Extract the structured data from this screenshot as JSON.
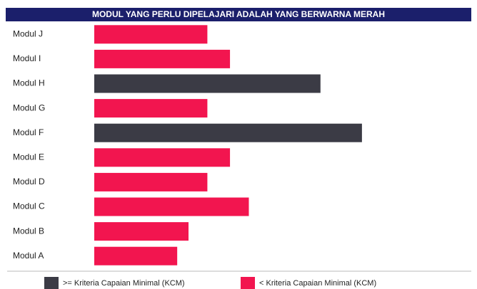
{
  "chart_data": {
    "type": "hbar",
    "title": "MODUL YANG PERLU DIPELAJARI ADALAH YANG BERWARNA MERAH",
    "categories": [
      "Modul J",
      "Modul I",
      "Modul H",
      "Modul G",
      "Modul F",
      "Modul E",
      "Modul D",
      "Modul C",
      "Modul B",
      "Modul A"
    ],
    "values": [
      30,
      36,
      60,
      30,
      71,
      36,
      30,
      41,
      25,
      22
    ],
    "colors": [
      "#f2154f",
      "#f2154f",
      "#3b3b45",
      "#f2154f",
      "#3b3b45",
      "#f2154f",
      "#f2154f",
      "#f2154f",
      "#f2154f",
      "#f2154f"
    ],
    "xlim": [
      0,
      100
    ],
    "legend": [
      {
        "name": ">= Kriteria Capaian Minimal (KCM)",
        "color": "#3b3b45"
      },
      {
        "name": "< Kriteria Capaian Minimal (KCM)",
        "color": "#f2154f"
      }
    ]
  }
}
